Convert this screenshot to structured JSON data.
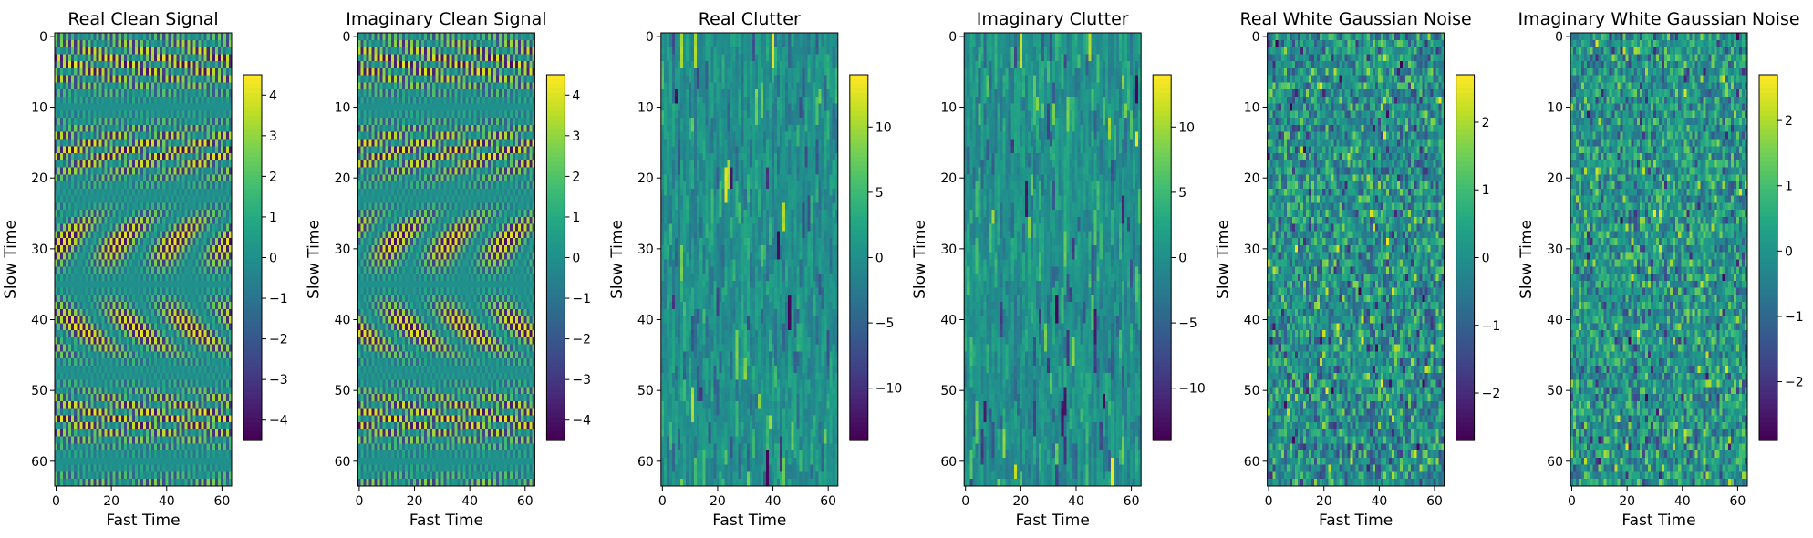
{
  "chart_data": [
    {
      "type": "heatmap",
      "title": "Real Clean Signal",
      "xlabel": "Fast Time",
      "ylabel": "Slow Time",
      "rows": 64,
      "cols": 64,
      "x_ticks": [
        0,
        20,
        40,
        60
      ],
      "y_ticks": [
        0,
        10,
        20,
        30,
        40,
        50,
        60
      ],
      "colorbar": {
        "min": -4.5,
        "max": 4.5,
        "ticks": [
          4,
          3,
          2,
          1,
          0,
          -1,
          -2,
          -3,
          -4
        ],
        "tick_labels": [
          "4",
          "3",
          "2",
          "1",
          "0",
          "−1",
          "−2",
          "−3",
          "−4"
        ]
      },
      "pattern": "chirp",
      "part": "real",
      "colormap": "viridis"
    },
    {
      "type": "heatmap",
      "title": "Imaginary Clean Signal",
      "xlabel": "Fast Time",
      "ylabel": "Slow Time",
      "rows": 64,
      "cols": 64,
      "x_ticks": [
        0,
        20,
        40,
        60
      ],
      "y_ticks": [
        0,
        10,
        20,
        30,
        40,
        50,
        60
      ],
      "colorbar": {
        "min": -4.5,
        "max": 4.5,
        "ticks": [
          4,
          3,
          2,
          1,
          0,
          -1,
          -2,
          -3,
          -4
        ],
        "tick_labels": [
          "4",
          "3",
          "2",
          "1",
          "0",
          "−1",
          "−2",
          "−3",
          "−4"
        ]
      },
      "pattern": "chirp",
      "part": "imaginary",
      "colormap": "viridis"
    },
    {
      "type": "heatmap",
      "title": "Real Clutter",
      "xlabel": "Fast Time",
      "ylabel": "Slow Time",
      "rows": 64,
      "cols": 64,
      "x_ticks": [
        0,
        20,
        40,
        60
      ],
      "y_ticks": [
        0,
        10,
        20,
        30,
        40,
        50,
        60
      ],
      "colorbar": {
        "min": -14,
        "max": 14,
        "ticks": [
          10,
          5,
          0,
          -5,
          -10
        ],
        "tick_labels": [
          "10",
          "5",
          "0",
          "−5",
          "−10"
        ]
      },
      "pattern": "clutter",
      "part": "real",
      "colormap": "viridis"
    },
    {
      "type": "heatmap",
      "title": "Imaginary Clutter",
      "xlabel": "Fast Time",
      "ylabel": "Slow Time",
      "rows": 64,
      "cols": 64,
      "x_ticks": [
        0,
        20,
        40,
        60
      ],
      "y_ticks": [
        0,
        10,
        20,
        30,
        40,
        50,
        60
      ],
      "colorbar": {
        "min": -14,
        "max": 14,
        "ticks": [
          10,
          5,
          0,
          -5,
          -10
        ],
        "tick_labels": [
          "10",
          "5",
          "0",
          "−5",
          "−10"
        ]
      },
      "pattern": "clutter",
      "part": "imaginary",
      "colormap": "viridis"
    },
    {
      "type": "heatmap",
      "title": "Real White Gaussian Noise",
      "xlabel": "Fast Time",
      "ylabel": "Slow Time",
      "rows": 64,
      "cols": 64,
      "x_ticks": [
        0,
        20,
        40,
        60
      ],
      "y_ticks": [
        0,
        10,
        20,
        30,
        40,
        50,
        60
      ],
      "colorbar": {
        "min": -2.7,
        "max": 2.7,
        "ticks": [
          2,
          1,
          0,
          -1,
          -2
        ],
        "tick_labels": [
          "2",
          "1",
          "0",
          "−1",
          "−2"
        ]
      },
      "pattern": "noise",
      "part": "real",
      "colormap": "viridis"
    },
    {
      "type": "heatmap",
      "title": "Imaginary White Gaussian Noise",
      "xlabel": "Fast Time",
      "ylabel": "Slow Time",
      "rows": 64,
      "cols": 64,
      "x_ticks": [
        0,
        20,
        40,
        60
      ],
      "y_ticks": [
        0,
        10,
        20,
        30,
        40,
        50,
        60
      ],
      "colorbar": {
        "min": -2.9,
        "max": 2.7,
        "ticks": [
          2,
          1,
          0,
          -1,
          -2
        ],
        "tick_labels": [
          "2",
          "1",
          "0",
          "−1",
          "−2"
        ]
      },
      "pattern": "noise",
      "part": "imaginary",
      "colormap": "viridis"
    }
  ]
}
